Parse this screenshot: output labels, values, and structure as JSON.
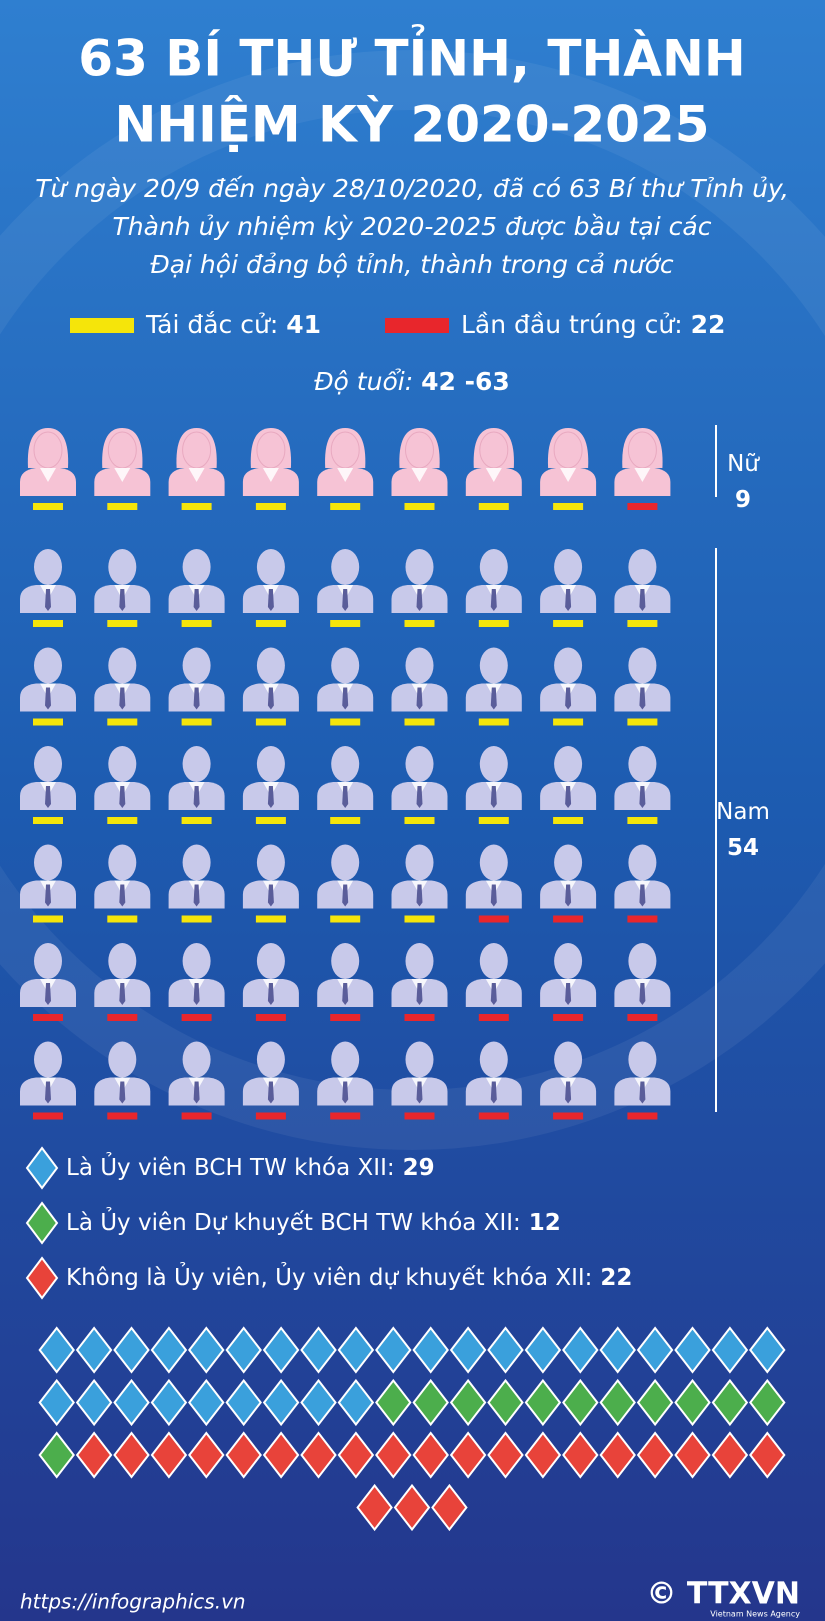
{
  "title": [
    "63 BÍ THƯ TỈNH, THÀNH",
    "NHIỆM KỲ 2020-2025"
  ],
  "subtitle": [
    "Từ ngày 20/9 đến ngày 28/10/2020, đã có 63 Bí thư Tỉnh ủy,",
    "Thành ủy nhiệm kỳ 2020-2025 được bầu tại các",
    "Đại hội đảng bộ tỉnh, thành trong cả nước"
  ],
  "legend": [
    {
      "label": "Tái đắc cử:",
      "value": 41,
      "color": "#f5e50a"
    },
    {
      "label": "Lần đầu trúng cử:",
      "value": 22,
      "color": "#e8262c"
    }
  ],
  "age": {
    "label": "Độ tuổi:",
    "value": "42 -63"
  },
  "groups": [
    {
      "label": "Nữ",
      "count": 9,
      "reelected": 8,
      "first_time": 1
    },
    {
      "label": "Nam",
      "count": 54,
      "reelected": 33,
      "first_time": 21
    }
  ],
  "membership": [
    {
      "label": "Là Ủy viên BCH TW khóa XII:",
      "value": 29,
      "color": "#3aa0dc"
    },
    {
      "label": "Là Ủy viên Dự khuyết BCH TW khóa XII:",
      "value": 12,
      "color": "#4cae4c"
    },
    {
      "label": "Không là Ủy viên, Ủy viên dự khuyết khóa XII:",
      "value": 22,
      "color": "#e8433a"
    }
  ],
  "footer": {
    "url": "https://infographics.vn",
    "brand": "© TTXVN",
    "agency": "Vietnam News Agency"
  }
}
